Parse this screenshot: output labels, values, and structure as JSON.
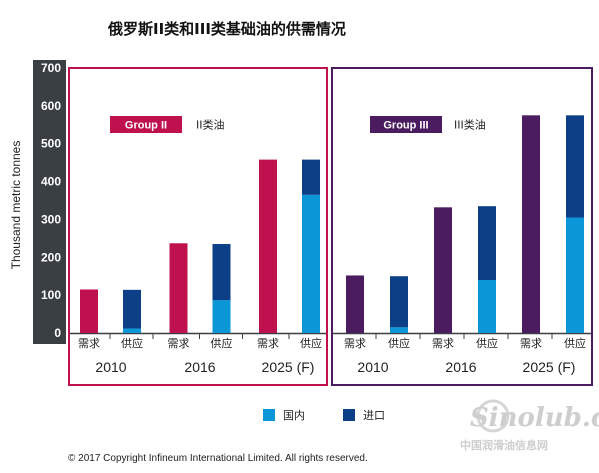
{
  "title": "俄罗斯II类和III类基础油的供需情况",
  "copyright": "© 2017 Copyright Infineum International Limited. All rights reserved.",
  "watermark": {
    "brand": "Sinolub.com",
    "cn": "中国润滑油信息网"
  },
  "colors": {
    "group2": "#c0114f",
    "group3": "#4b1c60",
    "domestic": "#0b96d8",
    "import": "#0b3f86",
    "axis": "#3a3f44"
  },
  "chart_data": {
    "type": "bar",
    "ylabel": "Thousand metric tonnes",
    "ylim": [
      0,
      700
    ],
    "yticks": [
      0,
      100,
      200,
      300,
      400,
      500,
      600,
      700
    ],
    "legend": {
      "placement": "bottom",
      "domestic": "国内",
      "import": "进口"
    },
    "panels": [
      {
        "group_label": "Group II",
        "desc": "II类油",
        "years": [
          {
            "year": "2010",
            "demand_label": "需求",
            "supply_label": "供应",
            "demand": 115,
            "supply_domestic": 12,
            "supply_import": 102
          },
          {
            "year": "2016",
            "demand_label": "需求",
            "supply_label": "供应",
            "demand": 237,
            "supply_domestic": 87,
            "supply_import": 148
          },
          {
            "year": "2025 (F)",
            "demand_label": "需求",
            "supply_label": "供应",
            "demand": 458,
            "supply_domestic": 365,
            "supply_import": 93
          }
        ]
      },
      {
        "group_label": "Group III",
        "desc": "III类油",
        "years": [
          {
            "year": "2010",
            "demand_label": "需求",
            "supply_label": "供应",
            "demand": 152,
            "supply_domestic": 15,
            "supply_import": 135
          },
          {
            "year": "2016",
            "demand_label": "需求",
            "supply_label": "供应",
            "demand": 332,
            "supply_domestic": 140,
            "supply_import": 195
          },
          {
            "year": "2025 (F)",
            "demand_label": "需求",
            "supply_label": "供应",
            "demand": 575,
            "supply_domestic": 305,
            "supply_import": 270
          }
        ]
      }
    ]
  }
}
